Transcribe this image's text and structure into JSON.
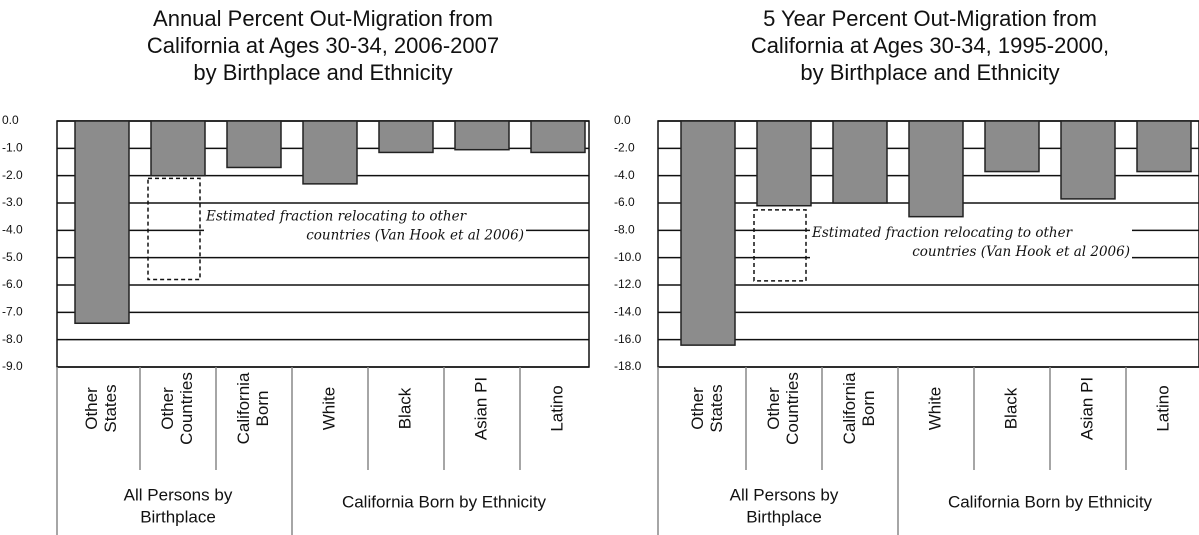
{
  "chart_data": [
    {
      "type": "bar",
      "title": [
        "Annual Percent Out-Migration from",
        "California at Ages 30-34, 2006-2007",
        "by Birthplace and Ethnicity"
      ],
      "categories": [
        [
          "Other",
          "States"
        ],
        [
          "Other",
          "Countries"
        ],
        [
          "California",
          "Born"
        ],
        [
          "White"
        ],
        [
          "Black"
        ],
        [
          "Asian PI"
        ],
        [
          "Latino"
        ]
      ],
      "values": [
        -7.4,
        -2.0,
        -1.7,
        -2.3,
        -1.15,
        -1.05,
        -1.15
      ],
      "color": "#8c8c8c",
      "groups": [
        [
          "All Persons by",
          "Birthplace"
        ],
        [
          "California Born by Ethnicity"
        ]
      ],
      "ylim": [
        -9,
        0
      ],
      "yticks": [
        {
          "value": 0,
          "label": "0.0"
        },
        {
          "value": -1,
          "label": "-1.0"
        },
        {
          "value": -2,
          "label": "-2.0"
        },
        {
          "value": -3,
          "label": "-3.0"
        },
        {
          "value": -4,
          "label": "-4.0"
        },
        {
          "value": -5,
          "label": "-5.0"
        },
        {
          "value": -6,
          "label": "-6.0"
        },
        {
          "value": -7,
          "label": "-7.0"
        },
        {
          "value": -8,
          "label": "-8.0"
        },
        {
          "value": -9,
          "label": "-9.0"
        }
      ],
      "grid": true,
      "annotation": [
        "Estimated fraction relocating to other",
        "countries (Van Hook et al 2006)"
      ],
      "annotation_range": [
        -2.1,
        -5.8
      ]
    },
    {
      "type": "bar",
      "title": [
        "5 Year Percent Out-Migration from",
        "California at Ages 30-34, 1995-2000,",
        "by Birthplace and Ethnicity"
      ],
      "categories": [
        [
          "Other",
          "States"
        ],
        [
          "Other",
          "Countries"
        ],
        [
          "California",
          "Born"
        ],
        [
          "White"
        ],
        [
          "Black"
        ],
        [
          "Asian PI"
        ],
        [
          "Latino"
        ]
      ],
      "values": [
        -16.4,
        -6.2,
        -6.0,
        -7.0,
        -3.7,
        -5.7,
        -3.7
      ],
      "color": "#8c8c8c",
      "groups": [
        [
          "All Persons by",
          "Birthplace"
        ],
        [
          "California Born by Ethnicity"
        ]
      ],
      "ylim": [
        -18,
        0
      ],
      "yticks": [
        {
          "value": 0,
          "label": "0.0"
        },
        {
          "value": -2,
          "label": "-2.0"
        },
        {
          "value": -4,
          "label": "-4.0"
        },
        {
          "value": -6,
          "label": "-6.0"
        },
        {
          "value": -8,
          "label": "-8.0"
        },
        {
          "value": -10,
          "label": "-10.0"
        },
        {
          "value": -12,
          "label": "-12.0"
        },
        {
          "value": -14,
          "label": "-14.0"
        },
        {
          "value": -16,
          "label": "-16.0"
        },
        {
          "value": -18,
          "label": "-18.0"
        }
      ],
      "grid": true,
      "annotation": [
        "Estimated fraction relocating to other",
        "countries (Van Hook et al 2006)"
      ],
      "annotation_range": [
        -6.5,
        -11.7
      ]
    }
  ]
}
